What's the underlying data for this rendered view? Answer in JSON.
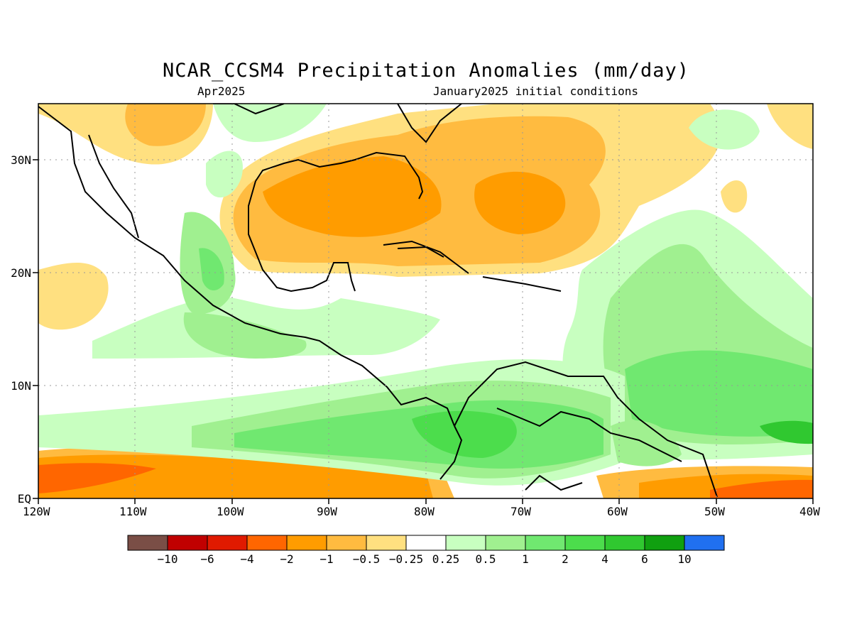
{
  "title": "NCAR_CCSM4 Precipitation Anomalies (mm/day)",
  "valid_month": "Apr2025",
  "initial_conditions": "January2025 initial conditions",
  "map": {
    "lon_labels": [
      "120W",
      "110W",
      "100W",
      "90W",
      "80W",
      "70W",
      "60W",
      "50W",
      "40W"
    ],
    "lat_labels": [
      "30N",
      "20N",
      "10N",
      "EQ"
    ],
    "lon_range": [
      -120,
      -40
    ],
    "lat_range": [
      0,
      35
    ],
    "grid": "dotted"
  },
  "colorbar": {
    "colors": [
      "#7a4e46",
      "#c00000",
      "#e01a00",
      "#ff6600",
      "#ff9c00",
      "#ffbb40",
      "#ffe080",
      "#ffffff",
      "#c8ffc0",
      "#a0f090",
      "#70e870",
      "#4cdd4c",
      "#30c830",
      "#10a010",
      "#2070f0"
    ],
    "labels": [
      "−10",
      "−6",
      "−4",
      "−2",
      "−1",
      "−0.5",
      "−0.25",
      "0.25",
      "0.5",
      "1",
      "2",
      "4",
      "6",
      "10"
    ]
  }
}
